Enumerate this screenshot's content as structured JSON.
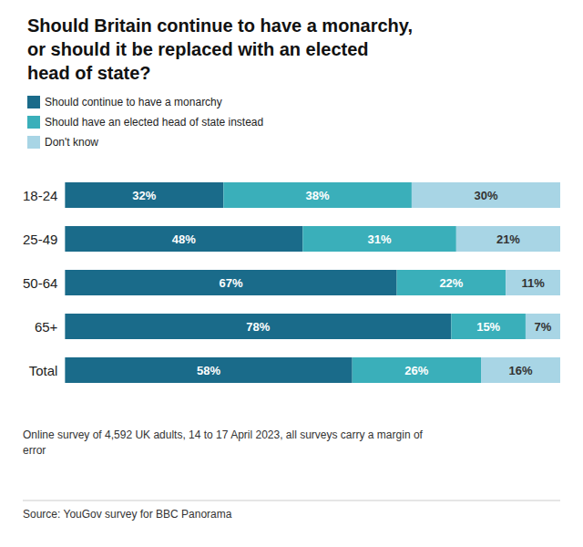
{
  "chart_data": {
    "type": "bar",
    "orientation": "horizontal",
    "stacked": true,
    "title": "Should Britain continue to have a monarchy,\nor should it be replaced with an elected\nhead of state?",
    "categories": [
      "18-24",
      "25-49",
      "50-64",
      "65+",
      "Total"
    ],
    "series": [
      {
        "name": "Should continue to have a monarchy",
        "color": "#1a6b8a",
        "values": [
          32,
          48,
          67,
          78,
          58
        ],
        "value_labels": [
          "32%",
          "48%",
          "67%",
          "78%",
          "58%"
        ]
      },
      {
        "name": "Should have an elected head of state instead",
        "color": "#3aafba",
        "values": [
          38,
          31,
          22,
          15,
          26
        ],
        "value_labels": [
          "38%",
          "31%",
          "22%",
          "15%",
          "26%"
        ]
      },
      {
        "name": "Don't know",
        "color": "#a8d5e5",
        "values": [
          30,
          21,
          11,
          7,
          16
        ],
        "value_labels": [
          "30%",
          "21%",
          "11%",
          "7%",
          "16%"
        ]
      }
    ],
    "xlim": [
      0,
      100
    ],
    "data_labels": true,
    "tick_labels": "y",
    "grid": false,
    "legend": "upper left",
    "annotations": [
      "Online survey of 4,592 UK adults, 14 to 17 April 2023, all surveys carry a margin of\nerror",
      "Source: YouGov survey for BBC Panorama"
    ]
  }
}
